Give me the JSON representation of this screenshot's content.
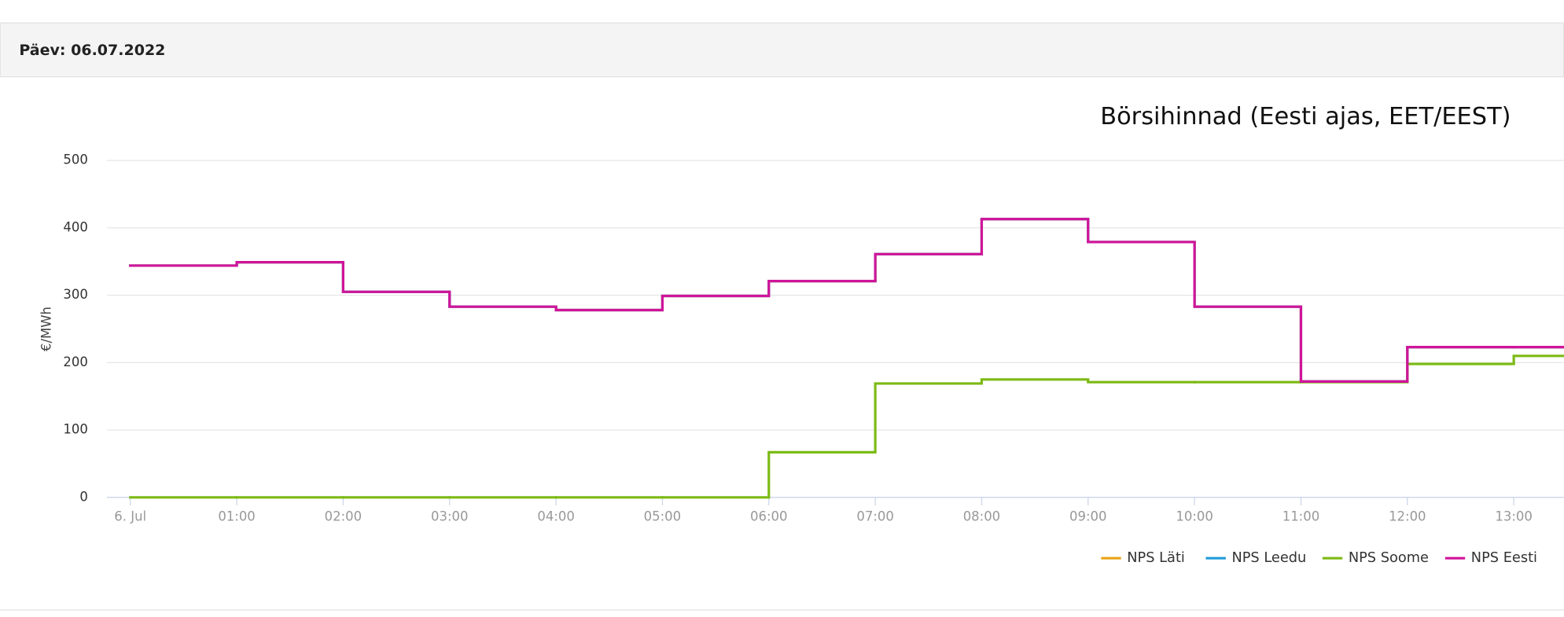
{
  "header": {
    "title": "Päev: 06.07.2022"
  },
  "chart_data": {
    "type": "step",
    "title": "Börsihinnad (Eesti ajas, EET/EEST)",
    "y_label": "€/MWh",
    "x": [
      0,
      1,
      2,
      3,
      4,
      5,
      6,
      7,
      8,
      9,
      10,
      11,
      12,
      13
    ],
    "xlim": [
      -0.22,
      13.47
    ],
    "xticks": [
      {
        "value": 0,
        "label": "6. Jul"
      },
      {
        "value": 1,
        "label": "01:00"
      },
      {
        "value": 2,
        "label": "02:00"
      },
      {
        "value": 3,
        "label": "03:00"
      },
      {
        "value": 4,
        "label": "04:00"
      },
      {
        "value": 5,
        "label": "05:00"
      },
      {
        "value": 6,
        "label": "06:00"
      },
      {
        "value": 7,
        "label": "07:00"
      },
      {
        "value": 8,
        "label": "08:00"
      },
      {
        "value": 9,
        "label": "09:00"
      },
      {
        "value": 10,
        "label": "10:00"
      },
      {
        "value": 11,
        "label": "11:00"
      },
      {
        "value": 12,
        "label": "12:00"
      },
      {
        "value": 13,
        "label": "13:00"
      }
    ],
    "ylim": [
      0,
      500
    ],
    "yticks": [
      0,
      100,
      200,
      300,
      400,
      500
    ],
    "grid": true,
    "series": [
      {
        "name": "NPS Läti",
        "color": "#e8a317",
        "values": [
          344,
          349,
          305,
          283,
          278,
          299,
          321,
          361,
          413,
          379,
          283,
          172,
          223,
          223
        ]
      },
      {
        "name": "NPS Leedu",
        "color": "#1f9bd7",
        "values": [
          344,
          349,
          305,
          283,
          278,
          299,
          321,
          361,
          413,
          379,
          283,
          172,
          223,
          223
        ]
      },
      {
        "name": "NPS Soome",
        "color": "#7cba14",
        "values": [
          0,
          0,
          0,
          0,
          0,
          0,
          67,
          169,
          175,
          171,
          171,
          171,
          198,
          210
        ]
      },
      {
        "name": "NPS Eesti",
        "color": "#d0149a",
        "values": [
          344,
          349,
          305,
          283,
          278,
          299,
          321,
          361,
          413,
          379,
          283,
          172,
          223,
          223
        ]
      }
    ]
  }
}
